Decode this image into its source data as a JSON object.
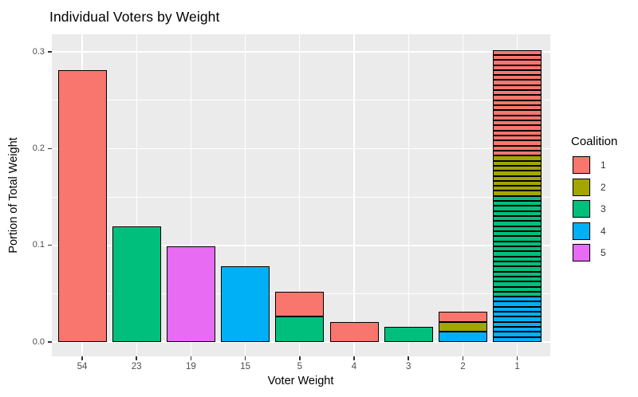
{
  "page": {
    "background": "#FFFFFF"
  },
  "chart_data": {
    "type": "bar",
    "stacked": true,
    "title": "Individual Voters by Weight",
    "xlabel": "Voter Weight",
    "ylabel": "Portion of Total Weight",
    "grid": true,
    "panel_background": "#EBEBEB",
    "gridline_color": "#FFFFFF",
    "bar_border_color": "#000000",
    "total_weight": 192,
    "categories": [
      "54",
      "23",
      "19",
      "15",
      "5",
      "4",
      "3",
      "2",
      "1"
    ],
    "bars": [
      {
        "category": "54",
        "weight": 54,
        "portion_total": 0.28125,
        "voters_top_to_bottom": [
          {
            "coalition": "1",
            "count": 1
          }
        ]
      },
      {
        "category": "23",
        "weight": 23,
        "portion_total": 0.11979,
        "voters_top_to_bottom": [
          {
            "coalition": "3",
            "count": 1
          }
        ]
      },
      {
        "category": "19",
        "weight": 19,
        "portion_total": 0.09896,
        "voters_top_to_bottom": [
          {
            "coalition": "5",
            "count": 1
          }
        ]
      },
      {
        "category": "15",
        "weight": 15,
        "portion_total": 0.07813,
        "voters_top_to_bottom": [
          {
            "coalition": "4",
            "count": 1
          }
        ]
      },
      {
        "category": "5",
        "weight": 5,
        "portion_total": 0.05208,
        "voters_top_to_bottom": [
          {
            "coalition": "1",
            "count": 1
          },
          {
            "coalition": "3",
            "count": 1
          }
        ]
      },
      {
        "category": "4",
        "weight": 4,
        "portion_total": 0.02083,
        "voters_top_to_bottom": [
          {
            "coalition": "1",
            "count": 1
          }
        ]
      },
      {
        "category": "3",
        "weight": 3,
        "portion_total": 0.01563,
        "voters_top_to_bottom": [
          {
            "coalition": "3",
            "count": 1
          }
        ]
      },
      {
        "category": "2",
        "weight": 2,
        "portion_total": 0.03125,
        "voters_top_to_bottom": [
          {
            "coalition": "1",
            "count": 1
          },
          {
            "coalition": "2",
            "count": 1
          },
          {
            "coalition": "4",
            "count": 1
          }
        ]
      },
      {
        "category": "1",
        "weight": 1,
        "portion_total": 0.30208,
        "voters_top_to_bottom": [
          {
            "coalition": "1",
            "count": 21
          },
          {
            "coalition": "2",
            "count": 8
          },
          {
            "coalition": "3",
            "count": 20
          },
          {
            "coalition": "4",
            "count": 9
          }
        ]
      }
    ],
    "y_axis": {
      "ticks": [
        {
          "value": 0.0,
          "label": "0.0"
        },
        {
          "value": 0.1,
          "label": "0.1"
        },
        {
          "value": 0.2,
          "label": "0.2"
        },
        {
          "value": 0.3,
          "label": "0.3"
        }
      ],
      "minor_ticks": [
        0.05,
        0.15,
        0.25
      ],
      "ylim": [
        -0.0151,
        0.3171
      ]
    },
    "coalition_colors": {
      "1": "#F8766D",
      "2": "#A3A500",
      "3": "#00BF7D",
      "4": "#00B0F6",
      "5": "#E76BF3"
    }
  },
  "legend": {
    "title": "Coalition",
    "entries": [
      {
        "label": "1",
        "color": "#F8766D"
      },
      {
        "label": "2",
        "color": "#A3A500"
      },
      {
        "label": "3",
        "color": "#00BF7D"
      },
      {
        "label": "4",
        "color": "#00B0F6"
      },
      {
        "label": "5",
        "color": "#E76BF3"
      }
    ]
  },
  "axis_text_color": "#4D4D4D"
}
